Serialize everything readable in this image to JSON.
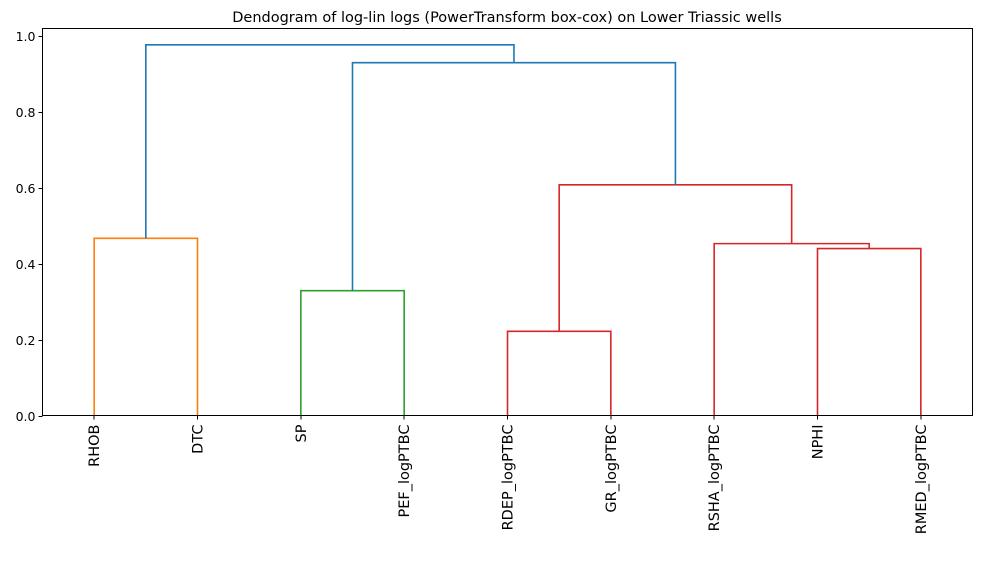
{
  "chart_data": {
    "type": "dendrogram",
    "title": "Dendogram of log-lin logs (PowerTransform box-cox) on Lower Triassic wells",
    "xlabel": "",
    "ylabel": "",
    "ylim": [
      0,
      1.02
    ],
    "yticks": [
      "0.0",
      "0.2",
      "0.4",
      "0.6",
      "0.8",
      "1.0"
    ],
    "ytick_values": [
      0.0,
      0.2,
      0.4,
      0.6,
      0.8,
      1.0
    ],
    "grid": false,
    "leaves": [
      "RHOB",
      "DTC",
      "SP",
      "PEF_logPTBC",
      "RDEP_logPTBC",
      "GR_logPTBC",
      "RSHA_logPTBC",
      "NPHI",
      "RMED_logPTBC"
    ],
    "colors": {
      "above_threshold": "#1f77b4",
      "cluster_1": "#ff7f0e",
      "cluster_2": "#2ca02c",
      "cluster_3": "#d62728"
    },
    "links": [
      {
        "name": "link-rhob-dtc",
        "color": "cluster_1",
        "x": [
          5,
          5,
          15,
          15
        ],
        "y": [
          0.0,
          0.467,
          0.467,
          0.0
        ]
      },
      {
        "name": "link-sp-pef",
        "color": "cluster_2",
        "x": [
          25,
          25,
          35,
          35
        ],
        "y": [
          0.0,
          0.329,
          0.329,
          0.0
        ]
      },
      {
        "name": "link-rdep-gr",
        "color": "cluster_3",
        "x": [
          45,
          45,
          55,
          55
        ],
        "y": [
          0.0,
          0.222,
          0.222,
          0.0
        ]
      },
      {
        "name": "link-nphi-rmed",
        "color": "cluster_3",
        "x": [
          75,
          75,
          85,
          85
        ],
        "y": [
          0.0,
          0.44,
          0.44,
          0.0
        ]
      },
      {
        "name": "link-rsha-nphi-rmed",
        "color": "cluster_3",
        "x": [
          65,
          65,
          80,
          80
        ],
        "y": [
          0.0,
          0.453,
          0.453,
          0.44
        ]
      },
      {
        "name": "link-red-cluster-top",
        "color": "cluster_3",
        "x": [
          50,
          50,
          72.5,
          72.5
        ],
        "y": [
          0.222,
          0.608,
          0.608,
          0.453
        ]
      },
      {
        "name": "link-green-red",
        "color": "above_threshold",
        "x": [
          30,
          30,
          61.25,
          61.25
        ],
        "y": [
          0.329,
          0.93,
          0.93,
          0.608
        ]
      },
      {
        "name": "link-root",
        "color": "above_threshold",
        "x": [
          10,
          10,
          45.625,
          45.625
        ],
        "y": [
          0.467,
          0.977,
          0.977,
          0.93
        ]
      }
    ]
  }
}
